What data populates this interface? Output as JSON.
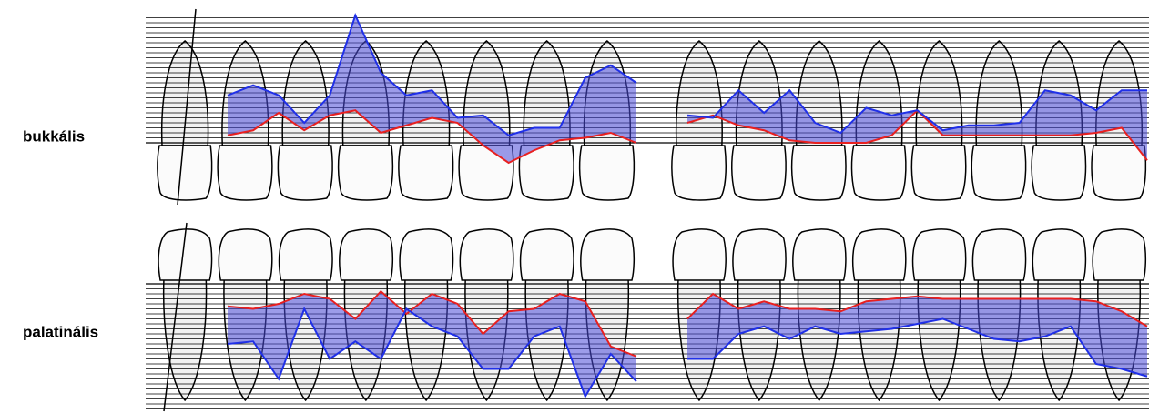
{
  "chart_data": [
    {
      "type": "line",
      "label": "bukkális",
      "x": [
        0,
        1,
        2,
        3,
        4,
        5,
        6,
        7,
        8,
        9,
        10,
        11,
        12,
        13,
        14,
        15,
        16,
        17,
        18,
        19,
        20,
        21,
        22,
        23,
        24,
        25,
        26,
        27,
        28,
        29,
        30,
        31,
        32,
        33,
        34,
        35,
        36
      ],
      "xlim": [
        0,
        36
      ],
      "ylim": [
        -5,
        25
      ],
      "inverted": false,
      "grid": true,
      "series": [
        {
          "color": "#e82020",
          "values": [
            1.5,
            2.5,
            6,
            2.5,
            5.5,
            6.5,
            2,
            3.5,
            5,
            4,
            -0.5,
            -4,
            -1.5,
            0.5,
            1,
            2,
            0,
            null,
            4,
            5.5,
            3.5,
            2.5,
            0.5,
            0,
            0,
            0,
            1.5,
            6.5,
            1.5,
            1.5,
            1.5,
            1.5,
            1.5,
            1.5,
            2,
            3,
            -3.5
          ]
        },
        {
          "color": "#2030e8",
          "values": [
            9.5,
            11.5,
            9.5,
            4,
            9.5,
            25.5,
            14,
            9.5,
            10.5,
            5,
            5.5,
            1.5,
            3,
            3,
            13,
            15.5,
            12,
            null,
            5.5,
            5,
            10.5,
            6,
            10.5,
            4,
            2,
            7,
            5.5,
            6.5,
            2.5,
            3.5,
            3.5,
            4,
            10.5,
            9.5,
            6.5,
            10.5,
            10.5
          ]
        }
      ]
    },
    {
      "type": "line",
      "label": "palatinális",
      "x": [
        0,
        1,
        2,
        3,
        4,
        5,
        6,
        7,
        8,
        9,
        10,
        11,
        12,
        13,
        14,
        15,
        16,
        17,
        18,
        19,
        20,
        21,
        22,
        23,
        24,
        25,
        26,
        27,
        28,
        29,
        30,
        31,
        32,
        33,
        34,
        35,
        36
      ],
      "xlim": [
        0,
        36
      ],
      "ylim": [
        0,
        25
      ],
      "inverted": true,
      "grid": true,
      "series": [
        {
          "color": "#e82020",
          "values": [
            4.5,
            5,
            4,
            2,
            3,
            7,
            1.5,
            6,
            2,
            4,
            10,
            5.5,
            5,
            2,
            3.5,
            12.5,
            14.5,
            null,
            7,
            2,
            5,
            3.5,
            5,
            5,
            5.5,
            3.5,
            3,
            2.5,
            3,
            3,
            3,
            3,
            3,
            3,
            3.5,
            5.5,
            8.5
          ]
        },
        {
          "color": "#2030e8",
          "values": [
            12,
            11.5,
            19,
            5,
            15,
            11.5,
            15,
            5,
            8.5,
            10.5,
            17,
            17,
            10.5,
            8.5,
            22.5,
            14,
            19.5,
            null,
            15,
            15,
            10,
            8.5,
            11,
            8.5,
            10,
            9.5,
            9,
            8,
            7,
            9,
            11,
            11.5,
            10.5,
            8.5,
            16,
            17,
            18.5
          ]
        }
      ]
    }
  ]
}
